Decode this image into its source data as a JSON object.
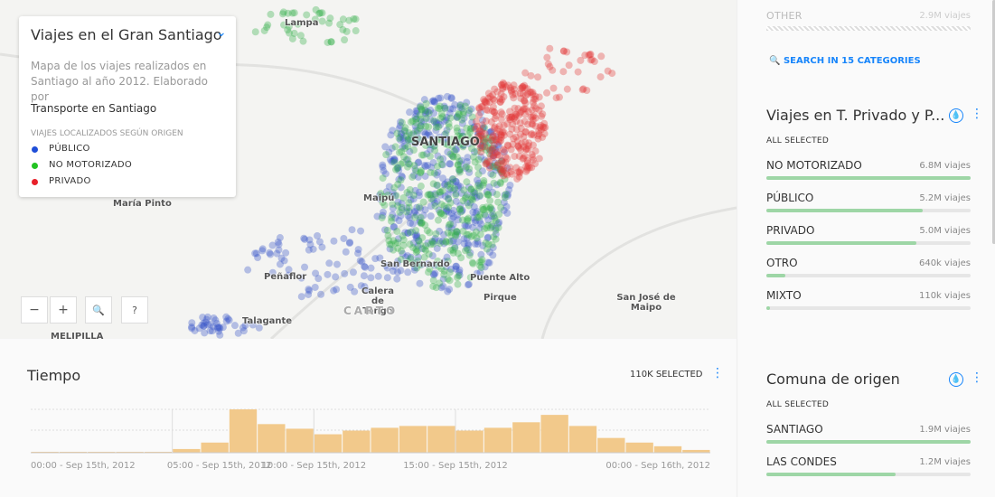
{
  "map": {
    "places": [
      "Lampa",
      "SANTIAGO",
      "Maipú",
      "María Pinto",
      "Peñaflor",
      "San Bernardo",
      "Puente Alto",
      "Calera de Tango",
      "Pirque",
      "San José de Maipo",
      "Talagante",
      "MELIPILLA"
    ],
    "attribution": "CARTO",
    "buttons": [
      "−",
      "+",
      "?"
    ]
  },
  "legend": {
    "title": "Viajes en el Gran Santiago",
    "description": "Mapa de los viajes realizados en Santiago al año 2012. Elaborado por",
    "subtitle": "Transporte en Santiago",
    "caption": "VIAJES LOCALIZADOS SEGÚN ORIGEN",
    "items": [
      {
        "name": "PÚBLICO",
        "color": "#1f4ed8"
      },
      {
        "name": "NO MOTORIZADO",
        "color": "#22c322"
      },
      {
        "name": "PRIVADO",
        "color": "#e8202a"
      }
    ]
  },
  "timeline": {
    "title": "Tiempo",
    "selected": "110K SELECTED",
    "values": [
      1,
      1,
      1,
      1,
      1,
      4,
      11,
      47,
      31,
      26,
      20,
      24,
      27,
      29,
      29,
      24,
      27,
      33,
      41,
      29,
      16,
      11,
      7,
      3
    ],
    "color": "#f2c98b",
    "ticks": [
      {
        "value": 0,
        "label": "00:00 - Sep 15th, 2012"
      },
      {
        "value": 5,
        "label": "05:00 - Sep 15th, 2012"
      },
      {
        "value": 10,
        "label": "10:00 - Sep 15th, 2012"
      },
      {
        "value": 15,
        "label": "15:00 - Sep 15th, 2012"
      },
      {
        "value": 24,
        "label": "00:00 - Sep 16th, 2012"
      }
    ]
  },
  "other_widget": {
    "name": "OTHER",
    "label": "2.9M viajes",
    "search": "SEARCH IN 15 CATEGORIES"
  },
  "widgets": [
    {
      "title": "Viajes en T. Privado y P...",
      "status": "ALL SELECTED",
      "items": [
        {
          "name": "NO MOTORIZADO",
          "count": 6800000,
          "label": "6.8M viajes"
        },
        {
          "name": "PÚBLICO",
          "count": 5200000,
          "label": "5.2M viajes"
        },
        {
          "name": "PRIVADO",
          "count": 5000000,
          "label": "5.0M viajes"
        },
        {
          "name": "OTRO",
          "count": 640000,
          "label": "640k viajes"
        },
        {
          "name": "MIXTO",
          "count": 110000,
          "label": "110k viajes"
        }
      ]
    },
    {
      "title": "Comuna de origen",
      "status": "ALL SELECTED",
      "items": [
        {
          "name": "SANTIAGO",
          "count": 1900000,
          "label": "1.9M viajes"
        },
        {
          "name": "LAS CONDES",
          "count": 1200000,
          "label": "1.2M viajes"
        }
      ]
    }
  ]
}
